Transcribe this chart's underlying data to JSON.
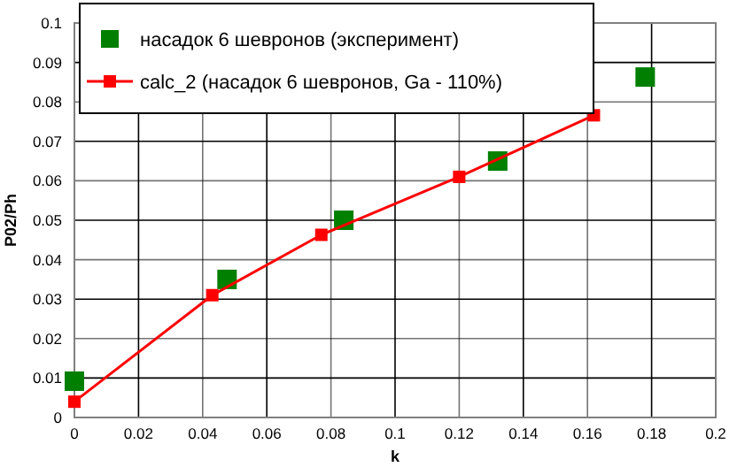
{
  "chart_data": {
    "type": "line",
    "xlabel": "k",
    "ylabel": "P02/Ph",
    "xlim": [
      0,
      0.2
    ],
    "xticks": [
      0,
      0.02,
      0.04,
      0.06,
      0.08,
      0.1,
      0.12,
      0.14,
      0.16,
      0.18,
      0.2
    ],
    "ylim": [
      0,
      0.1
    ],
    "yticks": [
      0,
      0.01,
      0.02,
      0.03,
      0.04,
      0.05,
      0.06,
      0.07,
      0.08,
      0.09,
      0.1
    ],
    "grid": true,
    "legend": "top left",
    "marker": "square",
    "series": [
      {
        "type": "scatter",
        "name": "насадок 6 шевронов (эксперимент)",
        "color": "#007f00",
        "x": [
          0,
          0.0476,
          0.084,
          0.132,
          0.178
        ],
        "values": [
          0.0092,
          0.035,
          0.05,
          0.065,
          0.0863
        ]
      },
      {
        "name": "calc_2 (насадок 6 шевронов, Ga - 110%)",
        "color": "#ff0000",
        "line_style": "solid",
        "x": [
          0,
          0.043,
          0.077,
          0.12,
          0.162
        ],
        "values": [
          0.004,
          0.031,
          0.0463,
          0.061,
          0.0766
        ]
      }
    ]
  }
}
